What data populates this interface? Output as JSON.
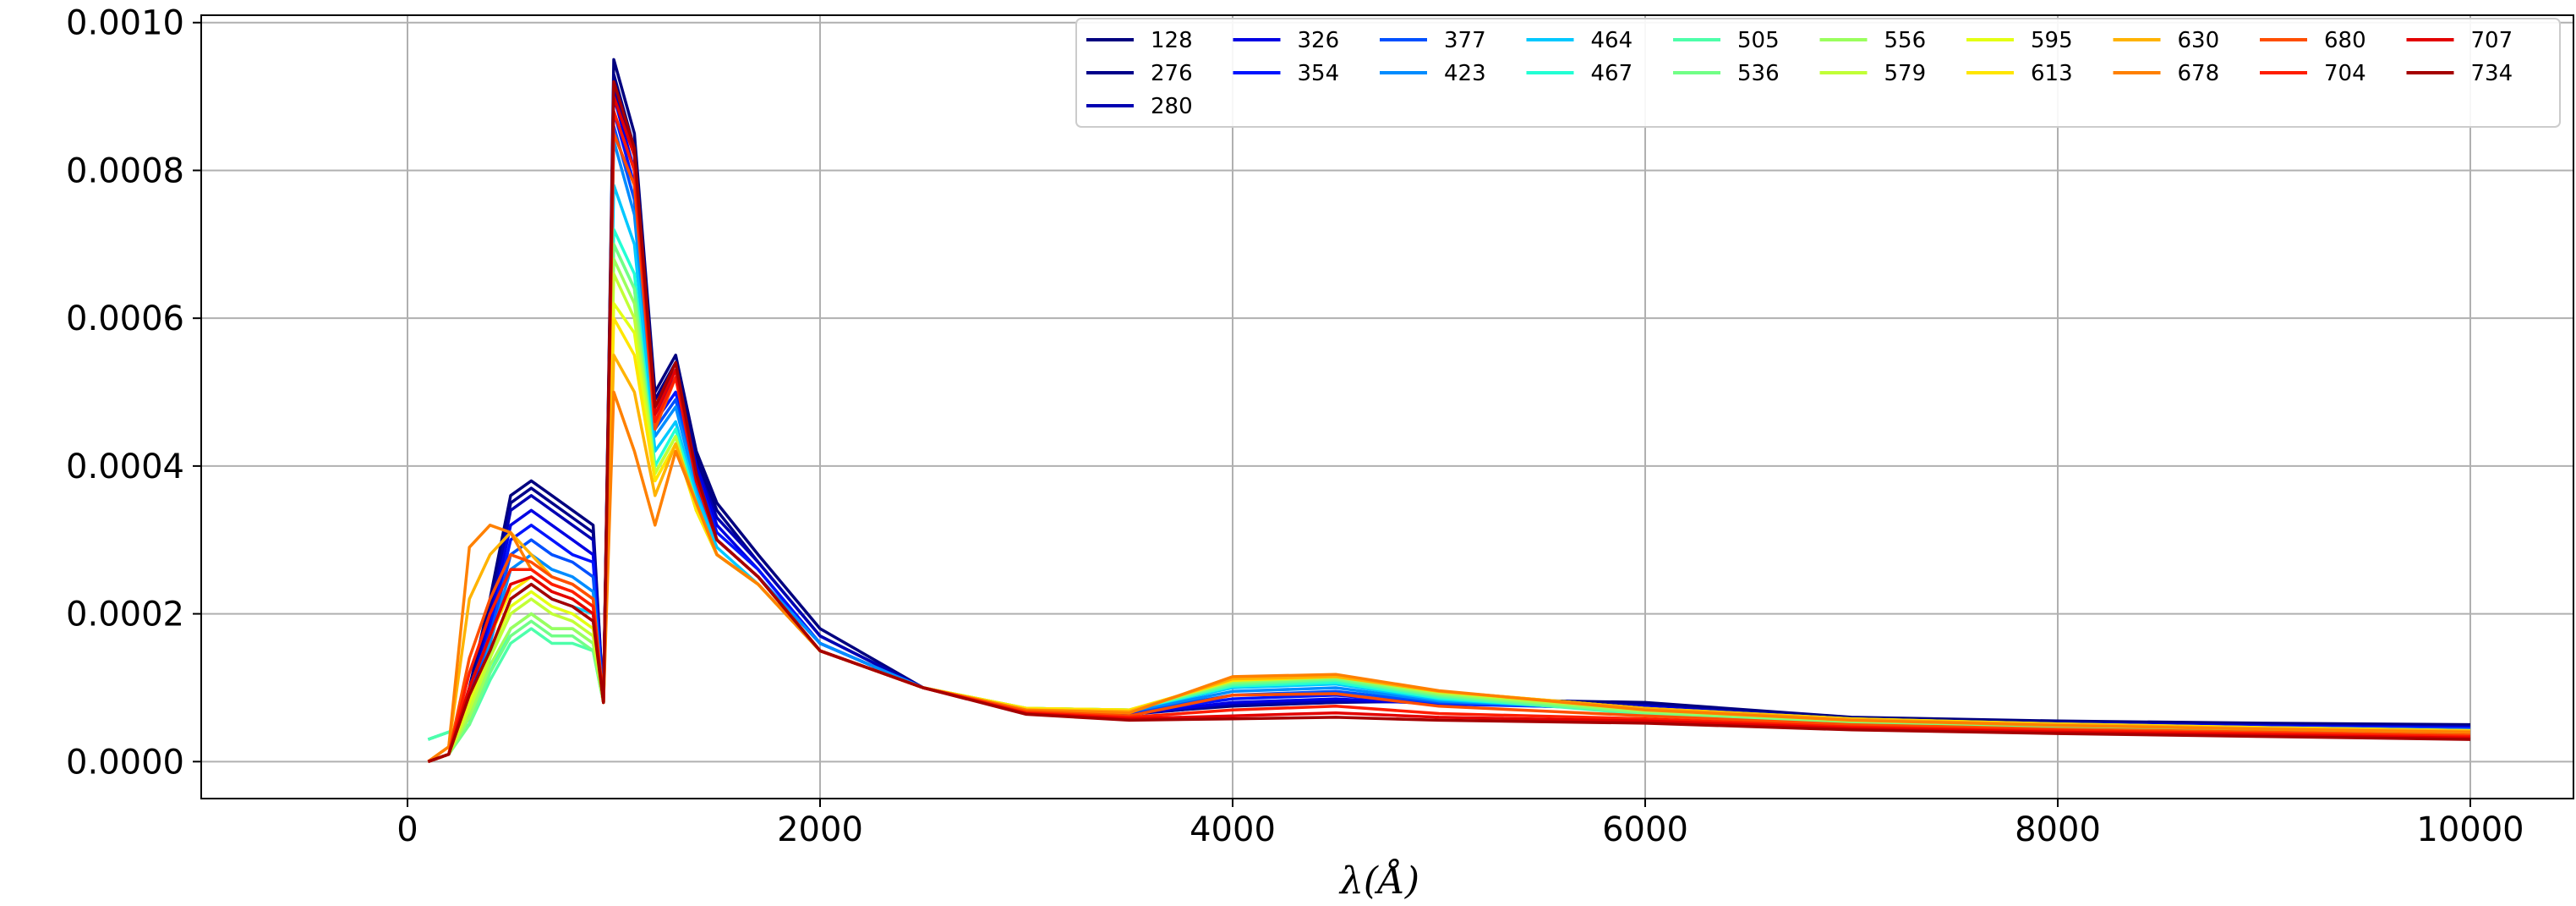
{
  "chart_data": {
    "type": "line",
    "title": "",
    "xlabel": "λ(Å)",
    "ylabel": "",
    "xlim": [
      -1000,
      10500
    ],
    "ylim": [
      -5e-05,
      0.00101
    ],
    "xticks": [
      0,
      2000,
      4000,
      6000,
      8000,
      10000
    ],
    "xtick_labels": [
      "0",
      "2000",
      "4000",
      "6000",
      "8000",
      "10000"
    ],
    "yticks": [
      0.0,
      0.0002,
      0.0004,
      0.0006,
      0.0008,
      0.001
    ],
    "ytick_labels": [
      "0.0000",
      "0.0002",
      "0.0004",
      "0.0006",
      "0.0008",
      "0.0010"
    ],
    "grid": true,
    "legend_position": "top-right",
    "legend_columns": 10,
    "colormap": "jet",
    "x": [
      100,
      200,
      300,
      400,
      500,
      600,
      700,
      800,
      900,
      950,
      1000,
      1100,
      1200,
      1300,
      1400,
      1500,
      1700,
      2000,
      2500,
      3000,
      3500,
      4000,
      4500,
      5000,
      6000,
      7000,
      8000,
      9000,
      10000
    ],
    "series": [
      {
        "name": "128",
        "color": "#00007f",
        "values": [
          0.0,
          1e-05,
          0.0001,
          0.00022,
          0.00036,
          0.00038,
          0.00036,
          0.00034,
          0.00032,
          8e-05,
          0.00095,
          0.00085,
          0.0005,
          0.00055,
          0.00042,
          0.00035,
          0.00028,
          0.00018,
          0.0001,
          7e-05,
          6.5e-05,
          7.5e-05,
          8e-05,
          8.5e-05,
          8e-05,
          6e-05,
          5.5e-05,
          5.2e-05,
          5e-05
        ]
      },
      {
        "name": "276",
        "color": "#00008a",
        "values": [
          0.0,
          1e-05,
          0.0001,
          0.00021,
          0.00035,
          0.00037,
          0.00035,
          0.00033,
          0.00031,
          8e-05,
          0.00093,
          0.00083,
          0.00049,
          0.00054,
          0.00041,
          0.00034,
          0.00027,
          0.00017,
          0.0001,
          7e-05,
          6.4e-05,
          7.6e-05,
          8e-05,
          8.2e-05,
          7.8e-05,
          5.8e-05,
          5.3e-05,
          5e-05,
          4.8e-05
        ]
      },
      {
        "name": "280",
        "color": "#0000b2",
        "values": [
          0.0,
          1e-05,
          9e-05,
          0.0002,
          0.00034,
          0.00036,
          0.00034,
          0.00032,
          0.0003,
          8e-05,
          0.00091,
          0.00082,
          0.00048,
          0.00053,
          0.0004,
          0.00033,
          0.00027,
          0.00017,
          0.0001,
          7e-05,
          6.4e-05,
          7.8e-05,
          8.2e-05,
          8e-05,
          7.6e-05,
          5.7e-05,
          5.2e-05,
          4.9e-05,
          4.7e-05
        ]
      },
      {
        "name": "326",
        "color": "#0000e3",
        "values": [
          0.0,
          1e-05,
          8e-05,
          0.00019,
          0.00032,
          0.00034,
          0.00032,
          0.0003,
          0.00028,
          8e-05,
          0.0009,
          0.0008,
          0.00047,
          0.00052,
          0.0004,
          0.00032,
          0.00026,
          0.00016,
          0.0001,
          7e-05,
          6.5e-05,
          8e-05,
          8.5e-05,
          7.8e-05,
          7.4e-05,
          5.6e-05,
          5.1e-05,
          4.8e-05,
          4.6e-05
        ]
      },
      {
        "name": "354",
        "color": "#0014ff",
        "values": [
          0.0,
          1e-05,
          8e-05,
          0.00018,
          0.0003,
          0.00032,
          0.0003,
          0.00028,
          0.00027,
          8e-05,
          0.00088,
          0.00078,
          0.00046,
          0.0005,
          0.00039,
          0.00031,
          0.00026,
          0.00016,
          0.0001,
          7e-05,
          6.6e-05,
          8.5e-05,
          9e-05,
          7.8e-05,
          7.2e-05,
          5.5e-05,
          5e-05,
          4.7e-05,
          4.5e-05
        ]
      },
      {
        "name": "377",
        "color": "#0050ff",
        "values": [
          0.0,
          1e-05,
          7e-05,
          0.00017,
          0.00028,
          0.0003,
          0.00028,
          0.00027,
          0.00025,
          8e-05,
          0.00086,
          0.00076,
          0.00045,
          0.00049,
          0.00038,
          0.0003,
          0.00025,
          0.00016,
          0.0001,
          7e-05,
          6.7e-05,
          9e-05,
          9.5e-05,
          8e-05,
          7e-05,
          5.5e-05,
          4.9e-05,
          4.6e-05,
          4.4e-05
        ]
      },
      {
        "name": "423",
        "color": "#008cff",
        "values": [
          0.0,
          1e-05,
          6e-05,
          0.00016,
          0.00026,
          0.00028,
          0.00026,
          0.00025,
          0.00023,
          8e-05,
          0.00084,
          0.00074,
          0.00044,
          0.00048,
          0.00037,
          0.0003,
          0.00025,
          0.00016,
          0.0001,
          7e-05,
          6.8e-05,
          9.5e-05,
          0.0001,
          8.2e-05,
          7e-05,
          5.4e-05,
          4.8e-05,
          4.5e-05,
          4.2e-05
        ]
      },
      {
        "name": "464",
        "color": "#00c8ff",
        "values": [
          3e-05,
          4e-05,
          5e-05,
          0.00014,
          0.00022,
          0.00024,
          0.00022,
          0.00021,
          0.0002,
          8e-05,
          0.00078,
          0.0007,
          0.00042,
          0.00046,
          0.00036,
          0.00029,
          0.00024,
          0.00015,
          0.0001,
          7.2e-05,
          7e-05,
          0.0001,
          0.000105,
          8.4e-05,
          6.8e-05,
          5.3e-05,
          4.7e-05,
          4.4e-05,
          4e-05
        ]
      },
      {
        "name": "467",
        "color": "#22ffd4",
        "values": [
          3e-05,
          4e-05,
          5e-05,
          0.00012,
          0.00018,
          0.0002,
          0.00018,
          0.00018,
          0.00016,
          8e-05,
          0.00072,
          0.00066,
          0.0004,
          0.00045,
          0.00035,
          0.00028,
          0.00024,
          0.00015,
          0.0001,
          7.2e-05,
          7e-05,
          0.000102,
          0.000107,
          8.6e-05,
          6.6e-05,
          5.2e-05,
          4.6e-05,
          4.2e-05,
          3.8e-05
        ]
      },
      {
        "name": "505",
        "color": "#4dffaa",
        "values": [
          3e-05,
          4e-05,
          5e-05,
          0.00011,
          0.00016,
          0.00018,
          0.00016,
          0.00016,
          0.00015,
          8e-05,
          0.0007,
          0.00064,
          0.00039,
          0.00044,
          0.00034,
          0.00028,
          0.00024,
          0.00015,
          0.0001,
          7.2e-05,
          7e-05,
          0.000104,
          0.00011,
          8.8e-05,
          6.4e-05,
          5.1e-05,
          4.5e-05,
          4e-05,
          3.6e-05
        ]
      },
      {
        "name": "536",
        "color": "#71ff86",
        "values": [
          0.0,
          1e-05,
          5e-05,
          0.00012,
          0.00017,
          0.00019,
          0.00017,
          0.00017,
          0.00015,
          8e-05,
          0.0007,
          0.00064,
          0.00039,
          0.00044,
          0.00034,
          0.00028,
          0.00024,
          0.00015,
          0.0001,
          7.2e-05,
          7e-05,
          0.000106,
          0.000112,
          9e-05,
          6.6e-05,
          5.3e-05,
          4.7e-05,
          4.2e-05,
          3.8e-05
        ]
      },
      {
        "name": "556",
        "color": "#9aff5d",
        "values": [
          0.0,
          1e-05,
          6e-05,
          0.00013,
          0.00018,
          0.0002,
          0.00018,
          0.00018,
          0.00016,
          8e-05,
          0.00068,
          0.00062,
          0.00039,
          0.00044,
          0.00034,
          0.00028,
          0.00024,
          0.00015,
          0.0001,
          7.2e-05,
          7e-05,
          0.000108,
          0.000114,
          9.2e-05,
          6.8e-05,
          5.5e-05,
          4.9e-05,
          4.4e-05,
          4e-05
        ]
      },
      {
        "name": "579",
        "color": "#c1ff36",
        "values": [
          0.0,
          1e-05,
          7e-05,
          0.00014,
          0.0002,
          0.00022,
          0.0002,
          0.00019,
          0.00017,
          8e-05,
          0.00066,
          0.0006,
          0.00039,
          0.00044,
          0.00034,
          0.00028,
          0.00024,
          0.00015,
          0.0001,
          7.2e-05,
          7e-05,
          0.00011,
          0.000116,
          9.4e-05,
          7e-05,
          5.7e-05,
          5e-05,
          4.5e-05,
          4.1e-05
        ]
      },
      {
        "name": "595",
        "color": "#e4ff13",
        "values": [
          0.0,
          1e-05,
          8e-05,
          0.00015,
          0.00021,
          0.00023,
          0.00021,
          0.0002,
          0.00018,
          8e-05,
          0.00062,
          0.00058,
          0.00038,
          0.00043,
          0.00034,
          0.00028,
          0.00024,
          0.00015,
          0.0001,
          7.2e-05,
          7e-05,
          0.00011,
          0.000116,
          9.5e-05,
          7.2e-05,
          5.8e-05,
          5.1e-05,
          4.6e-05,
          4.2e-05
        ]
      },
      {
        "name": "613",
        "color": "#ffe600",
        "values": [
          0.0,
          1e-05,
          0.0001,
          0.00017,
          0.00023,
          0.00025,
          0.00023,
          0.00022,
          0.0002,
          8e-05,
          0.0006,
          0.00055,
          0.00038,
          0.00043,
          0.00034,
          0.00028,
          0.00024,
          0.00015,
          0.0001,
          7.2e-05,
          7e-05,
          0.00011,
          0.000115,
          9.5e-05,
          7.2e-05,
          5.8e-05,
          5.1e-05,
          4.6e-05,
          4.2e-05
        ]
      },
      {
        "name": "630",
        "color": "#ffb300",
        "values": [
          0.0,
          2e-05,
          0.00022,
          0.00028,
          0.00031,
          0.00028,
          0.00025,
          0.00024,
          0.00022,
          8e-05,
          0.00055,
          0.0005,
          0.00036,
          0.00043,
          0.00035,
          0.00028,
          0.00024,
          0.00015,
          0.0001,
          7e-05,
          6.8e-05,
          0.000112,
          0.000115,
          9.5e-05,
          7.2e-05,
          5.7e-05,
          5e-05,
          4.5e-05,
          4.1e-05
        ]
      },
      {
        "name": "678",
        "color": "#ff8000",
        "values": [
          0.0,
          2e-05,
          0.00029,
          0.00032,
          0.00031,
          0.00026,
          0.00024,
          0.00023,
          0.00021,
          8e-05,
          0.0005,
          0.00042,
          0.00032,
          0.00042,
          0.00035,
          0.00028,
          0.00024,
          0.00015,
          0.0001,
          7e-05,
          6.6e-05,
          0.000115,
          0.000118,
          9.6e-05,
          7e-05,
          5.6e-05,
          4.9e-05,
          4.4e-05,
          4e-05
        ]
      },
      {
        "name": "680",
        "color": "#ff4e00",
        "values": [
          0.0,
          1e-05,
          0.00014,
          0.00022,
          0.00028,
          0.00027,
          0.00025,
          0.00024,
          0.00022,
          8e-05,
          0.00085,
          0.00078,
          0.00045,
          0.00052,
          0.00038,
          0.0003,
          0.00025,
          0.00015,
          0.0001,
          6.8e-05,
          6.2e-05,
          9e-05,
          9.2e-05,
          7.5e-05,
          6.2e-05,
          5e-05,
          4.4e-05,
          4e-05,
          3.6e-05
        ]
      },
      {
        "name": "704",
        "color": "#ff1d00",
        "values": [
          0.0,
          1e-05,
          0.00012,
          0.0002,
          0.00026,
          0.00026,
          0.00024,
          0.00023,
          0.00021,
          8e-05,
          0.00088,
          0.0008,
          0.00046,
          0.00052,
          0.00038,
          0.0003,
          0.00025,
          0.00015,
          0.0001,
          6.6e-05,
          6e-05,
          7e-05,
          7.5e-05,
          6.5e-05,
          5.8e-05,
          4.7e-05,
          4.2e-05,
          3.8e-05,
          3.4e-05
        ]
      },
      {
        "name": "707",
        "color": "#e30000",
        "values": [
          0.0,
          1e-05,
          0.0001,
          0.00017,
          0.00024,
          0.00025,
          0.00023,
          0.00022,
          0.0002,
          8e-05,
          0.0009,
          0.00082,
          0.00047,
          0.00053,
          0.00038,
          0.0003,
          0.00025,
          0.00015,
          0.0001,
          6.5e-05,
          5.8e-05,
          6.2e-05,
          6.6e-05,
          6e-05,
          5.5e-05,
          4.5e-05,
          4e-05,
          3.6e-05,
          3.2e-05
        ]
      },
      {
        "name": "734",
        "color": "#a50000",
        "values": [
          0.0,
          1e-05,
          9e-05,
          0.00015,
          0.00022,
          0.00024,
          0.00022,
          0.00021,
          0.00019,
          8e-05,
          0.00092,
          0.00083,
          0.00048,
          0.00054,
          0.00039,
          0.0003,
          0.00025,
          0.00015,
          0.0001,
          6.4e-05,
          5.6e-05,
          5.8e-05,
          6e-05,
          5.6e-05,
          5.2e-05,
          4.3e-05,
          3.8e-05,
          3.4e-05,
          3e-05
        ]
      }
    ]
  }
}
